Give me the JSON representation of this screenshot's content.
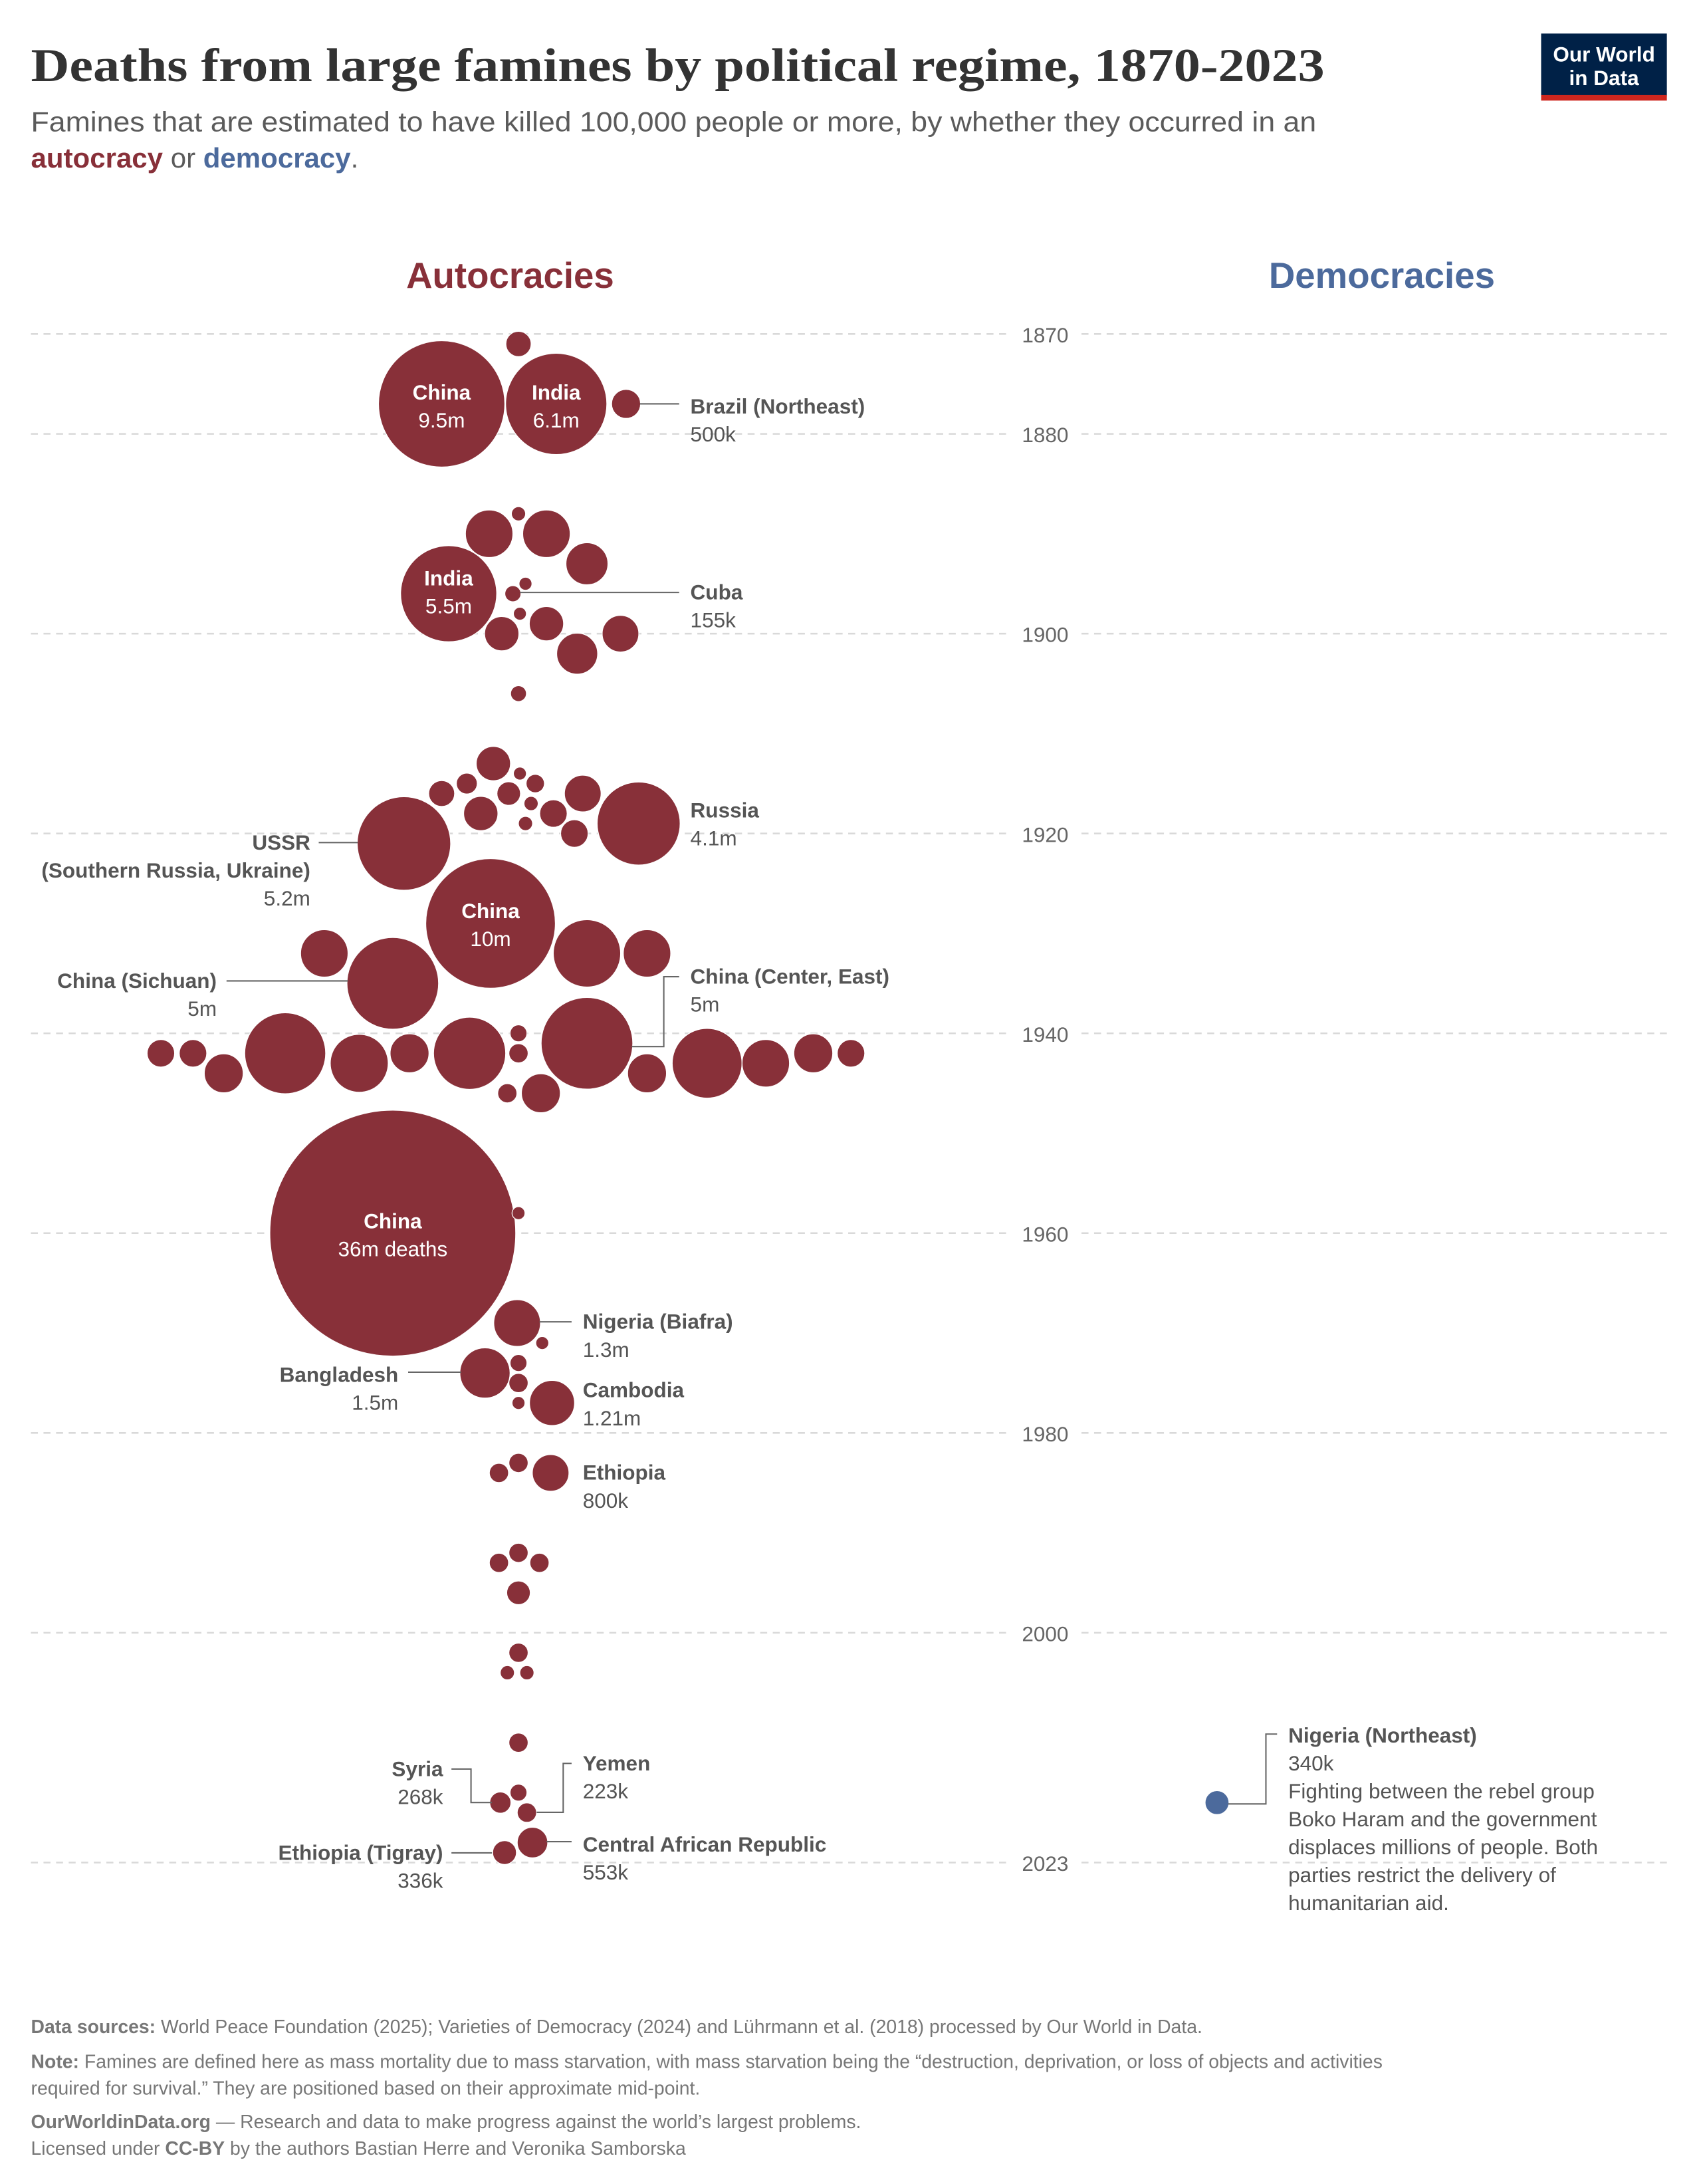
{
  "header": {
    "title": "Deaths from large famines by political regime, 1870-2023",
    "subtitle_line1": "Famines that are estimated to have killed 100,000 people or more, by whether they occurred in an",
    "subtitle_autocracy": "autocracy",
    "subtitle_or": " or ",
    "subtitle_democracy": "democracy",
    "subtitle_end": "."
  },
  "logo": {
    "line1": "Our World",
    "line2": "in Data",
    "bg_color": "#002147",
    "accent_color": "#ce261e"
  },
  "colors": {
    "autocracy": "#883039",
    "democracy": "#4c6a9c"
  },
  "chart_data": {
    "type": "scatter",
    "subtype": "beeswarm bubble",
    "title": "Deaths from large famines by political regime, 1870-2023",
    "size_encodes": "deaths",
    "y_axis": {
      "ticks": [
        1870,
        1880,
        1900,
        1920,
        1940,
        1960,
        1980,
        2000,
        2023
      ],
      "range": [
        1870,
        2023
      ],
      "grid": true
    },
    "columns": [
      "Autocracies",
      "Democracies"
    ],
    "series": [
      {
        "name": "Autocracies",
        "color": "#883039",
        "points": [
          {
            "year": 1871,
            "deaths": 380000
          },
          {
            "year": 1877,
            "deaths": 9500000,
            "name": "China",
            "deaths_label": "9.5m"
          },
          {
            "year": 1877,
            "deaths": 6100000,
            "name": "India",
            "deaths_label": "6.1m"
          },
          {
            "year": 1877,
            "deaths": 500000,
            "name": "Brazil (Northeast)",
            "deaths_label": "500k"
          },
          {
            "year": 1890,
            "deaths": 1340000
          },
          {
            "year": 1888,
            "deaths": 120000
          },
          {
            "year": 1890,
            "deaths": 1340000
          },
          {
            "year": 1893,
            "deaths": 1050000
          },
          {
            "year": 1896,
            "deaths": 5500000,
            "name": "India",
            "deaths_label": "5.5m"
          },
          {
            "year": 1895,
            "deaths": 100000
          },
          {
            "year": 1896,
            "deaths": 155000,
            "name": "Cuba",
            "deaths_label": "155k"
          },
          {
            "year": 1898,
            "deaths": 100000
          },
          {
            "year": 1899,
            "deaths": 700000
          },
          {
            "year": 1900,
            "deaths": 700000
          },
          {
            "year": 1900,
            "deaths": 800000
          },
          {
            "year": 1902,
            "deaths": 1000000
          },
          {
            "year": 1906,
            "deaths": 150000
          },
          {
            "year": 1913,
            "deaths": 700000
          },
          {
            "year": 1914,
            "deaths": 100000
          },
          {
            "year": 1915,
            "deaths": 260000
          },
          {
            "year": 1915,
            "deaths": 200000
          },
          {
            "year": 1916,
            "deaths": 400000
          },
          {
            "year": 1916,
            "deaths": 330000
          },
          {
            "year": 1916,
            "deaths": 800000
          },
          {
            "year": 1917,
            "deaths": 120000
          },
          {
            "year": 1918,
            "deaths": 700000
          },
          {
            "year": 1918,
            "deaths": 450000
          },
          {
            "year": 1919,
            "deaths": 120000
          },
          {
            "year": 1919,
            "deaths": 4100000,
            "name": "Russia",
            "deaths_label": "4.1m"
          },
          {
            "year": 1921,
            "deaths": 5200000,
            "name": "USSR",
            "name_line2": "(Southern Russia, Ukraine)",
            "deaths_label": "5.2m"
          },
          {
            "year": 1920,
            "deaths": 450000
          },
          {
            "year": 1929,
            "deaths": 10000000,
            "name": "China",
            "deaths_label": "10m"
          },
          {
            "year": 1932,
            "deaths": 1340000
          },
          {
            "year": 1932,
            "deaths": 2700000
          },
          {
            "year": 1932,
            "deaths": 1340000
          },
          {
            "year": 1935,
            "deaths": 5000000,
            "name": "China (Sichuan)",
            "deaths_label": "5m"
          },
          {
            "year": 1941,
            "deaths": 5000000,
            "name": "China (Center, East)",
            "deaths_label": "5m"
          },
          {
            "year": 1942,
            "deaths": 450000
          },
          {
            "year": 1942,
            "deaths": 450000
          },
          {
            "year": 1944,
            "deaths": 900000
          },
          {
            "year": 1942,
            "deaths": 3900000
          },
          {
            "year": 1943,
            "deaths": 2000000
          },
          {
            "year": 1942,
            "deaths": 900000
          },
          {
            "year": 1942,
            "deaths": 3100000
          },
          {
            "year": 1940,
            "deaths": 170000
          },
          {
            "year": 1942,
            "deaths": 220000
          },
          {
            "year": 1946,
            "deaths": 220000
          },
          {
            "year": 1946,
            "deaths": 900000
          },
          {
            "year": 1944,
            "deaths": 900000
          },
          {
            "year": 1943,
            "deaths": 2900000
          },
          {
            "year": 1943,
            "deaths": 1340000
          },
          {
            "year": 1942,
            "deaths": 900000
          },
          {
            "year": 1942,
            "deaths": 450000
          },
          {
            "year": 1960,
            "deaths": 36000000,
            "name": "China",
            "deaths_label": "36m deaths"
          },
          {
            "year": 1958,
            "deaths": 100000
          },
          {
            "year": 1969,
            "deaths": 1300000,
            "name": "Nigeria (Biafra)",
            "deaths_label": "1.3m"
          },
          {
            "year": 1971,
            "deaths": 100000
          },
          {
            "year": 1973,
            "deaths": 170000
          },
          {
            "year": 1974,
            "deaths": 1500000,
            "name": "Bangladesh",
            "deaths_label": "1.5m"
          },
          {
            "year": 1975,
            "deaths": 220000
          },
          {
            "year": 1977,
            "deaths": 100000
          },
          {
            "year": 1977,
            "deaths": 1210000,
            "name": "Cambodia",
            "deaths_label": "1.21m"
          },
          {
            "year": 1983,
            "deaths": 220000
          },
          {
            "year": 1984,
            "deaths": 220000
          },
          {
            "year": 1984,
            "deaths": 800000,
            "name": "Ethiopia",
            "deaths_label": "800k"
          },
          {
            "year": 1992,
            "deaths": 220000
          },
          {
            "year": 1993,
            "deaths": 220000
          },
          {
            "year": 1993,
            "deaths": 220000
          },
          {
            "year": 1996,
            "deaths": 330000
          },
          {
            "year": 2002,
            "deaths": 220000
          },
          {
            "year": 2004,
            "deaths": 120000
          },
          {
            "year": 2004,
            "deaths": 120000
          },
          {
            "year": 2011,
            "deaths": 220000
          },
          {
            "year": 2016,
            "deaths": 170000
          },
          {
            "year": 2017,
            "deaths": 268000,
            "name": "Syria",
            "deaths_label": "268k"
          },
          {
            "year": 2018,
            "deaths": 223000,
            "name": "Yemen",
            "deaths_label": "223k"
          },
          {
            "year": 2022,
            "deaths": 336000,
            "name": "Ethiopia (Tigray)",
            "deaths_label": "336k"
          },
          {
            "year": 2021,
            "deaths": 553000,
            "name": "Central African Republic",
            "deaths_label": "553k"
          }
        ]
      },
      {
        "name": "Democracies",
        "color": "#4c6a9c",
        "points": [
          {
            "year": 2017,
            "deaths": 340000,
            "name": "Nigeria (Northeast)",
            "deaths_label": "340k",
            "description": [
              "Fighting between the rebel group",
              "Boko Haram and the government",
              "displaces millions of people. Both",
              "parties restrict the delivery of",
              "humanitarian aid."
            ]
          }
        ]
      }
    ]
  },
  "footer": {
    "sources_label": "Data sources:",
    "sources_text": " World Peace Foundation (2025); Varieties of Democracy (2024) and Lührmann et al. (2018) processed by Our World in Data.",
    "note_label": "Note:",
    "note_line1": " Famines are defined here as mass mortality due to mass starvation, with mass starvation being the “destruction, deprivation, or loss of objects and activities",
    "note_line2": "required for survival.” They are positioned based on their approximate mid-point.",
    "site": "OurWorldinData.org",
    "site_tagline": " — Research and data to make progress against the world’s largest problems.",
    "license_pre": "Licensed under ",
    "license": "CC-BY",
    "license_post": " by the authors Bastian Herre and Veronika Samborska"
  }
}
